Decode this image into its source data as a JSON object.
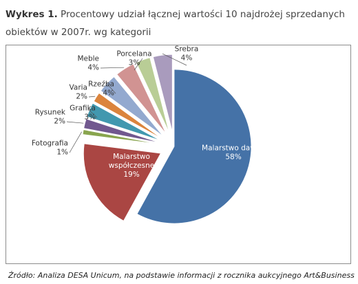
{
  "title": {
    "lead": "Wykres 1.",
    "text": "Procentowy udział łącznej wartości 10 najdrożej sprzedanych obiektów w 2007r. wg kategorii"
  },
  "source": "Źródło: Analiza DESA Unicum, na podstawie informacji z rocznika aukcyjnego Art&Business",
  "chart_data": {
    "type": "pie",
    "slices": [
      {
        "name": "Malarstwo dawne",
        "value": 58,
        "pct_label": "58%",
        "color": "#4572a7",
        "exploded": false
      },
      {
        "name": "Malarstwo współczesne",
        "value": 19,
        "pct_label": "19%",
        "color": "#aa4643",
        "exploded": true
      },
      {
        "name": "Fotografia",
        "value": 1,
        "pct_label": "1%",
        "color": "#89a54e",
        "exploded": true
      },
      {
        "name": "Rysunek",
        "value": 2,
        "pct_label": "2%",
        "color": "#71588f",
        "exploded": true
      },
      {
        "name": "Grafika",
        "value": 3,
        "pct_label": "3%",
        "color": "#4198af",
        "exploded": true
      },
      {
        "name": "Varia",
        "value": 2,
        "pct_label": "2%",
        "color": "#db843d",
        "exploded": true
      },
      {
        "name": "Rzeźba",
        "value": 4,
        "pct_label": "4%",
        "color": "#93a9cf",
        "exploded": true
      },
      {
        "name": "Meble",
        "value": 4,
        "pct_label": "4%",
        "color": "#d19392",
        "exploded": true
      },
      {
        "name": "Porcelana",
        "value": 3,
        "pct_label": "3%",
        "color": "#b9cd96",
        "exploded": true
      },
      {
        "name": "Srebra",
        "value": 4,
        "pct_label": "4%",
        "color": "#a99bbd",
        "exploded": true
      }
    ],
    "labels": [
      {
        "lines": [
          "Malarstwo dawne",
          "58%"
        ],
        "color": "#ffffff"
      },
      {
        "lines": [
          "Malarstwo",
          "współczesne",
          "19%"
        ],
        "color": "#ffffff"
      },
      {
        "lines": [
          "Fotografia",
          "1%"
        ],
        "color": "#333333"
      },
      {
        "lines": [
          "Rysunek",
          "2%"
        ],
        "color": "#333333"
      },
      {
        "lines": [
          "Grafika",
          "3%"
        ],
        "color": "#333333"
      },
      {
        "lines": [
          "Varia",
          "2%"
        ],
        "color": "#333333"
      },
      {
        "lines": [
          "Rzeźba",
          "4%"
        ],
        "color": "#333333"
      },
      {
        "lines": [
          "Meble",
          "4%"
        ],
        "color": "#333333"
      },
      {
        "lines": [
          "Porcelana",
          "3%"
        ],
        "color": "#333333"
      },
      {
        "lines": [
          "Srebra",
          "4%"
        ],
        "color": "#333333"
      }
    ],
    "legend": "none"
  }
}
